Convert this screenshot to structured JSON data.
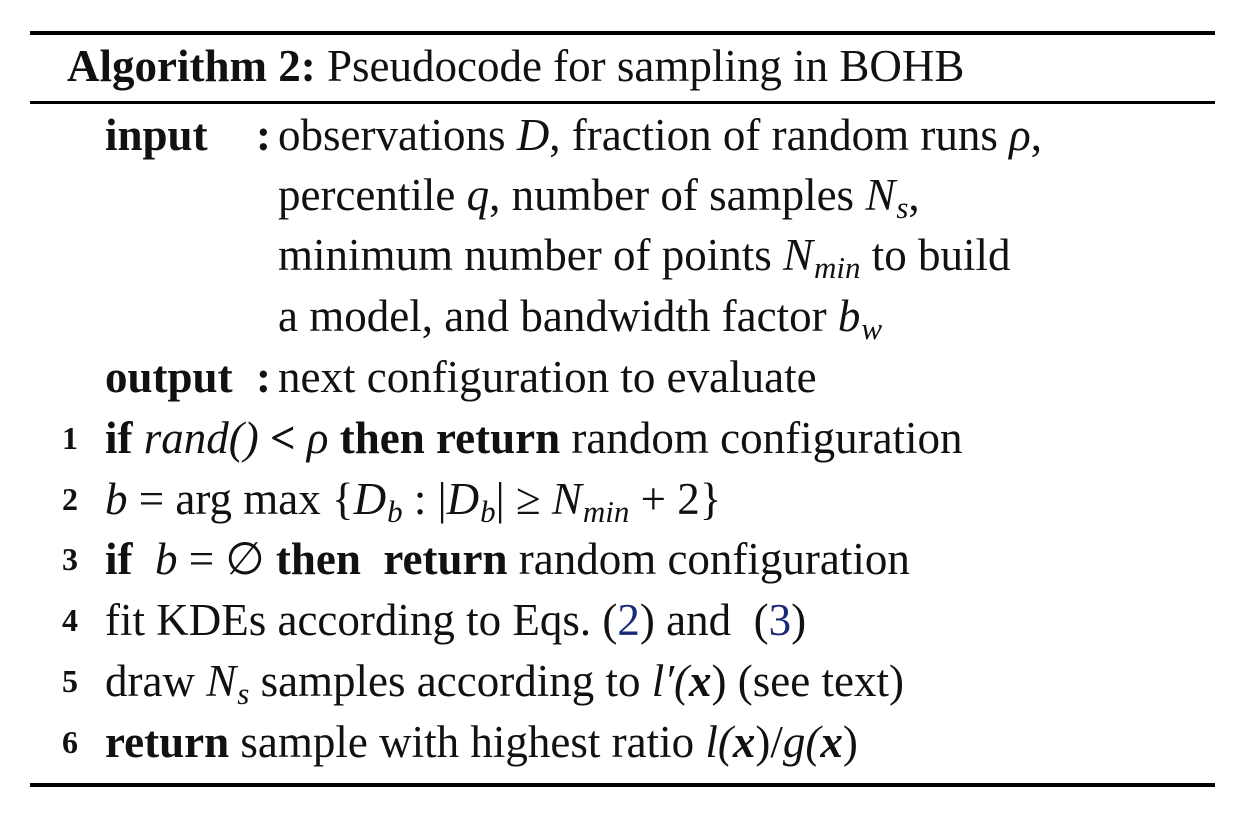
{
  "caption": {
    "label": "Algorithm 2:",
    "title": "Pseudocode for sampling in BOHB"
  },
  "input": {
    "label": "input",
    "colon": ":",
    "lines": {
      "l1_a": "observations ",
      "l1_D": "D",
      "l1_b": ", fraction of random runs ",
      "l1_rho": "ρ",
      "l1_c": ",",
      "l2_a": "percentile ",
      "l2_q": "q",
      "l2_b": ", number of samples ",
      "l2_N": "N",
      "l2_s": "s",
      "l2_c": ",",
      "l3_a": "minimum number of points ",
      "l3_N": "N",
      "l3_min": "min",
      "l3_b": " to build",
      "l4_a": "a model, and bandwidth factor ",
      "l4_b": "b",
      "l4_w": "w"
    }
  },
  "output": {
    "label": "output",
    "colon": ":",
    "text": "next configuration to evaluate"
  },
  "steps": [
    {
      "num": "1",
      "if": "if",
      "rand": "rand()",
      "lt": " < ",
      "rho": "ρ",
      "then_return": " then return",
      "rest": " random configuration"
    },
    {
      "num": "2",
      "b": "b",
      "eq": " = arg max ",
      "lb": "{",
      "D1": "D",
      "b1": "b",
      "colon": " : |",
      "D2": "D",
      "b2": "b",
      "ge": "| ≥ ",
      "N": "N",
      "min": "min",
      "plus": " + 2",
      "rb": "}"
    },
    {
      "num": "3",
      "if": "if",
      "b": "  b",
      "eq": " = ∅ ",
      "then": "then",
      "ret": "  return",
      "rest": " random configuration"
    },
    {
      "num": "4",
      "a": "fit KDEs according to Eqs. (",
      "ref1": "2",
      "b": ") and  (",
      "ref2": "3",
      "c": ")"
    },
    {
      "num": "5",
      "a": "draw ",
      "N": "N",
      "s": "s",
      "b": " samples according to ",
      "l": "l′(",
      "x": "x",
      "c": ") (see text)"
    },
    {
      "num": "6",
      "ret": "return",
      "a": " sample with highest ratio ",
      "l": "l(",
      "x1": "x",
      "mid": ")/",
      "g": "g(",
      "x2": "x",
      "end": ")"
    }
  ]
}
